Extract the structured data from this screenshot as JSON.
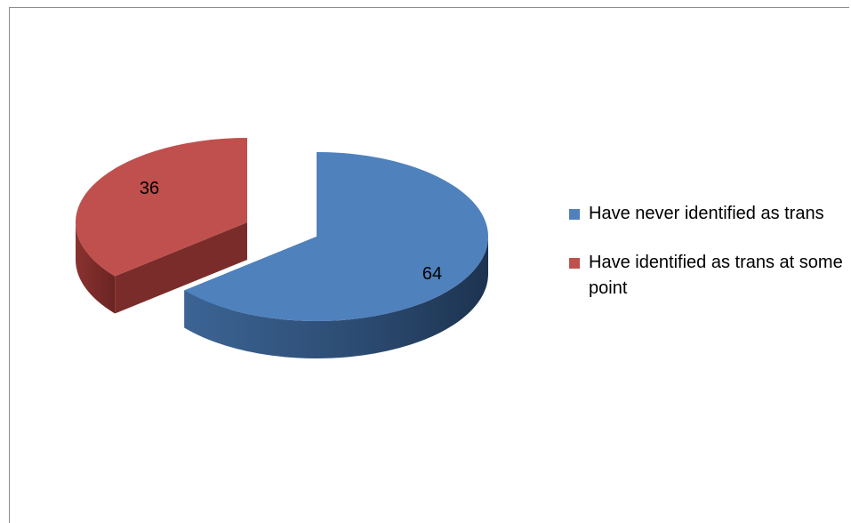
{
  "chart_data": {
    "type": "pie",
    "style": "3d-exploded",
    "categories": [
      "Have never identified as trans",
      "Have identified as trans at some point"
    ],
    "values": [
      64,
      36
    ],
    "colors": [
      "#4f81bd",
      "#c0504d"
    ],
    "data_labels": [
      "64",
      "36"
    ],
    "legend": "right",
    "title": ""
  }
}
